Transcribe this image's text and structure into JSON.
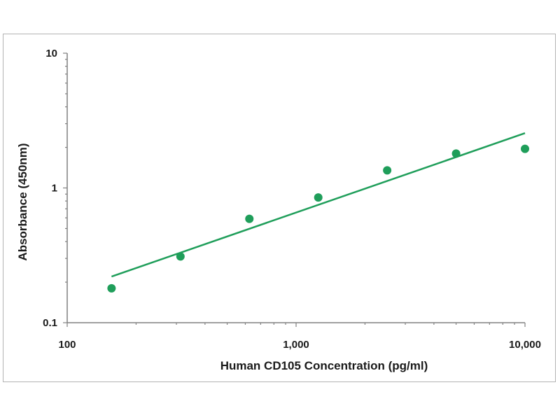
{
  "chart_data": {
    "type": "scatter",
    "title": "",
    "xlabel": "Human CD105 Concentration (pg/ml)",
    "ylabel": "Absorbance (450nm)",
    "x_scale": "log",
    "y_scale": "log",
    "xlim": [
      100,
      10000
    ],
    "ylim": [
      0.1,
      10
    ],
    "x_ticks": [
      {
        "value": 100,
        "label": "100"
      },
      {
        "value": 1000,
        "label": "1,000"
      },
      {
        "value": 10000,
        "label": "10,000"
      }
    ],
    "y_ticks": [
      {
        "value": 0.1,
        "label": "0.1"
      },
      {
        "value": 1,
        "label": "1"
      },
      {
        "value": 10,
        "label": "10"
      }
    ],
    "grid": false,
    "legend": "none",
    "series": [
      {
        "x": [
          156.25,
          312.5,
          625,
          1250,
          2500,
          5000,
          10000
        ],
        "y": [
          0.18,
          0.31,
          0.59,
          0.85,
          1.35,
          1.8,
          1.95
        ],
        "color": "#1f9e5a"
      }
    ],
    "trendline": {
      "type": "power",
      "x": [
        156.25,
        10000
      ],
      "y": [
        0.22,
        2.55
      ],
      "color": "#1f9e5a"
    }
  }
}
